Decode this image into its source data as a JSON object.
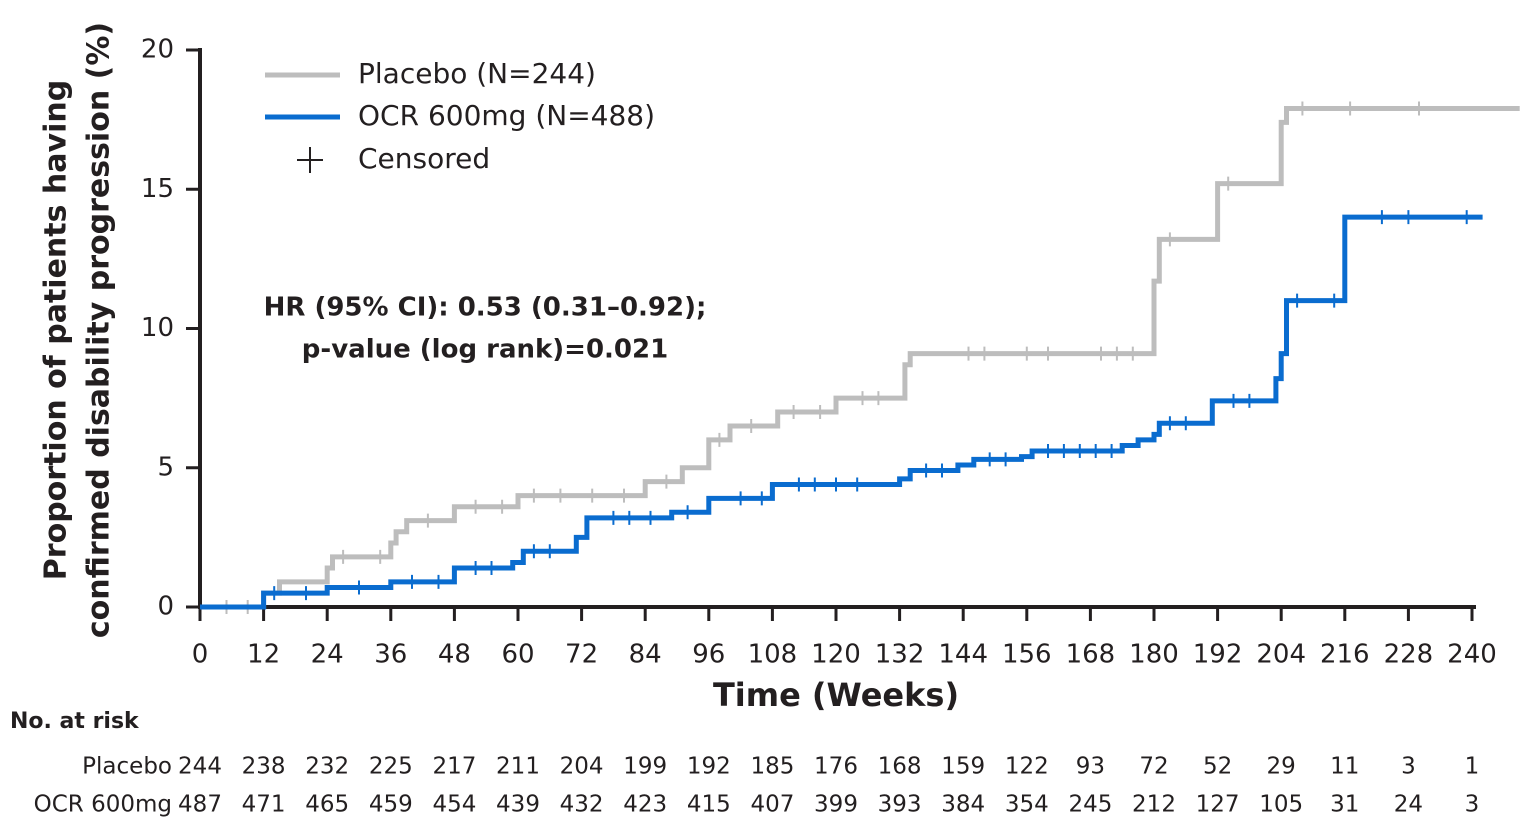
{
  "chart_data": {
    "type": "step",
    "ylabel": [
      "Proportion of patients having",
      "confirmed disability progression (%)"
    ],
    "xlabel": "Time (Weeks)",
    "annotation": [
      "HR (95% CI): 0.53 (0.31–0.92);",
      "p-value (log rank)=0.021"
    ],
    "censored_label": "Censored",
    "xlim": [
      0,
      240
    ],
    "ylim": [
      0,
      20
    ],
    "xticks": [
      0,
      12,
      24,
      36,
      48,
      60,
      72,
      84,
      96,
      108,
      120,
      132,
      144,
      156,
      168,
      180,
      192,
      204,
      216,
      228,
      240
    ],
    "yticks": [
      0,
      5,
      10,
      15,
      20
    ],
    "legend": "upper left",
    "series": [
      {
        "name": "Placebo (N=244)",
        "color": "#bdbdbd",
        "x": [
          0,
          12,
          12,
          15,
          15,
          24,
          24,
          25,
          25,
          36,
          36,
          37,
          37,
          39,
          39,
          48,
          48,
          60,
          60,
          84,
          84,
          91,
          91,
          96,
          96,
          100,
          100,
          109,
          109,
          120,
          120,
          133,
          133,
          134,
          134,
          180,
          180,
          181,
          181,
          192,
          192,
          204,
          204,
          205,
          205,
          249
        ],
        "values": [
          0,
          0,
          0.5,
          0.5,
          0.9,
          0.9,
          1.4,
          1.4,
          1.8,
          1.8,
          2.3,
          2.3,
          2.7,
          2.7,
          3.1,
          3.1,
          3.6,
          3.6,
          4.0,
          4.0,
          4.5,
          4.5,
          5.0,
          5.0,
          6.0,
          6.0,
          6.5,
          6.5,
          7.0,
          7.0,
          7.5,
          7.5,
          8.7,
          8.7,
          9.1,
          9.1,
          11.7,
          11.7,
          13.2,
          13.2,
          15.2,
          15.2,
          17.4,
          17.4,
          17.9,
          17.9
        ],
        "censored_x": [
          5,
          9,
          27,
          34,
          43,
          52,
          57,
          63,
          68,
          74,
          80,
          88,
          98,
          104,
          112,
          117,
          125,
          128,
          145,
          148,
          156,
          160,
          170,
          173,
          176,
          183,
          194,
          208,
          217,
          230
        ],
        "censored_values": [
          0,
          0,
          1.8,
          1.8,
          3.1,
          3.6,
          3.6,
          4.0,
          4.0,
          4.0,
          4.0,
          4.5,
          6.0,
          6.5,
          7.0,
          7.0,
          7.5,
          7.5,
          9.1,
          9.1,
          9.1,
          9.1,
          9.1,
          9.1,
          9.1,
          13.2,
          15.2,
          17.9,
          17.9,
          17.9
        ]
      },
      {
        "name": "OCR 600mg (N=488)",
        "color": "#0a6ccf",
        "x": [
          0,
          12,
          12,
          24,
          24,
          36,
          36,
          48,
          48,
          59,
          59,
          61,
          61,
          71,
          71,
          73,
          73,
          89,
          89,
          96,
          96,
          108,
          108,
          132,
          132,
          134,
          134,
          143,
          143,
          146,
          146,
          155,
          155,
          157,
          157,
          174,
          174,
          177,
          177,
          180,
          180,
          181,
          181,
          191,
          191,
          203,
          203,
          204,
          204,
          205,
          205,
          216,
          216,
          242
        ],
        "values": [
          0,
          0,
          0.5,
          0.5,
          0.7,
          0.7,
          0.9,
          0.9,
          1.4,
          1.4,
          1.6,
          1.6,
          2.0,
          2.0,
          2.5,
          2.5,
          3.2,
          3.2,
          3.4,
          3.4,
          3.9,
          3.9,
          4.4,
          4.4,
          4.6,
          4.6,
          4.9,
          4.9,
          5.1,
          5.1,
          5.3,
          5.3,
          5.4,
          5.4,
          5.6,
          5.6,
          5.8,
          5.8,
          6.0,
          6.0,
          6.2,
          6.2,
          6.6,
          6.6,
          7.4,
          7.4,
          8.2,
          8.2,
          9.1,
          9.1,
          11.0,
          11.0,
          14.0,
          14.0
        ],
        "censored_x": [
          14,
          20,
          30,
          40,
          45,
          52,
          55,
          63,
          66,
          78,
          81,
          85,
          92,
          102,
          106,
          113,
          116,
          120,
          124,
          137,
          140,
          149,
          152,
          160,
          163,
          166,
          169,
          172,
          183,
          186,
          195,
          198,
          207,
          214,
          223,
          228,
          239
        ],
        "censored_values": [
          0.5,
          0.5,
          0.7,
          0.9,
          0.9,
          1.4,
          1.4,
          2.0,
          2.0,
          3.2,
          3.2,
          3.2,
          3.4,
          3.9,
          3.9,
          4.4,
          4.4,
          4.4,
          4.4,
          4.9,
          4.9,
          5.3,
          5.3,
          5.6,
          5.6,
          5.6,
          5.6,
          5.6,
          6.6,
          6.6,
          7.4,
          7.4,
          11.0,
          11.0,
          14.0,
          14.0,
          14.0
        ]
      }
    ]
  },
  "risk_table": {
    "title": "No. at risk",
    "rows": [
      {
        "name": "Placebo",
        "values": [
          244,
          238,
          232,
          225,
          217,
          211,
          204,
          199,
          192,
          185,
          176,
          168,
          159,
          122,
          93,
          72,
          52,
          29,
          11,
          3,
          1
        ]
      },
      {
        "name": "OCR 600mg",
        "values": [
          487,
          471,
          465,
          459,
          454,
          439,
          432,
          423,
          415,
          407,
          399,
          393,
          384,
          354,
          245,
          212,
          127,
          105,
          31,
          24,
          3
        ]
      }
    ]
  }
}
